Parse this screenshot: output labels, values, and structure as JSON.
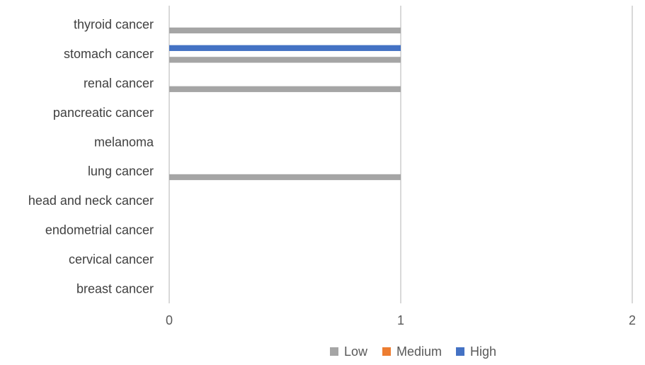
{
  "chart_data": {
    "type": "bar",
    "orientation": "horizontal",
    "categories": [
      "breast cancer",
      "cervical cancer",
      "endometrial cancer",
      "head and neck cancer",
      "lung cancer",
      "melanoma",
      "pancreatic cancer",
      "renal cancer",
      "stomach cancer",
      "thyroid cancer"
    ],
    "series": [
      {
        "name": "Low",
        "color": "#a5a5a5",
        "values": [
          0,
          0,
          0,
          0,
          1,
          0,
          0,
          1,
          1,
          1
        ]
      },
      {
        "name": "Medium",
        "color": "#ed7d31",
        "values": [
          0,
          0,
          0,
          0,
          0,
          0,
          0,
          0,
          0,
          0
        ]
      },
      {
        "name": "High",
        "color": "#4472c4",
        "values": [
          0,
          0,
          0,
          0,
          0,
          0,
          0,
          0,
          1,
          0
        ]
      }
    ],
    "xlim": [
      0,
      2
    ],
    "x_ticks": [
      "0",
      "1",
      "2"
    ],
    "grid": "vertical",
    "legend_position": "bottom",
    "title": "",
    "xlabel": "",
    "ylabel": ""
  }
}
